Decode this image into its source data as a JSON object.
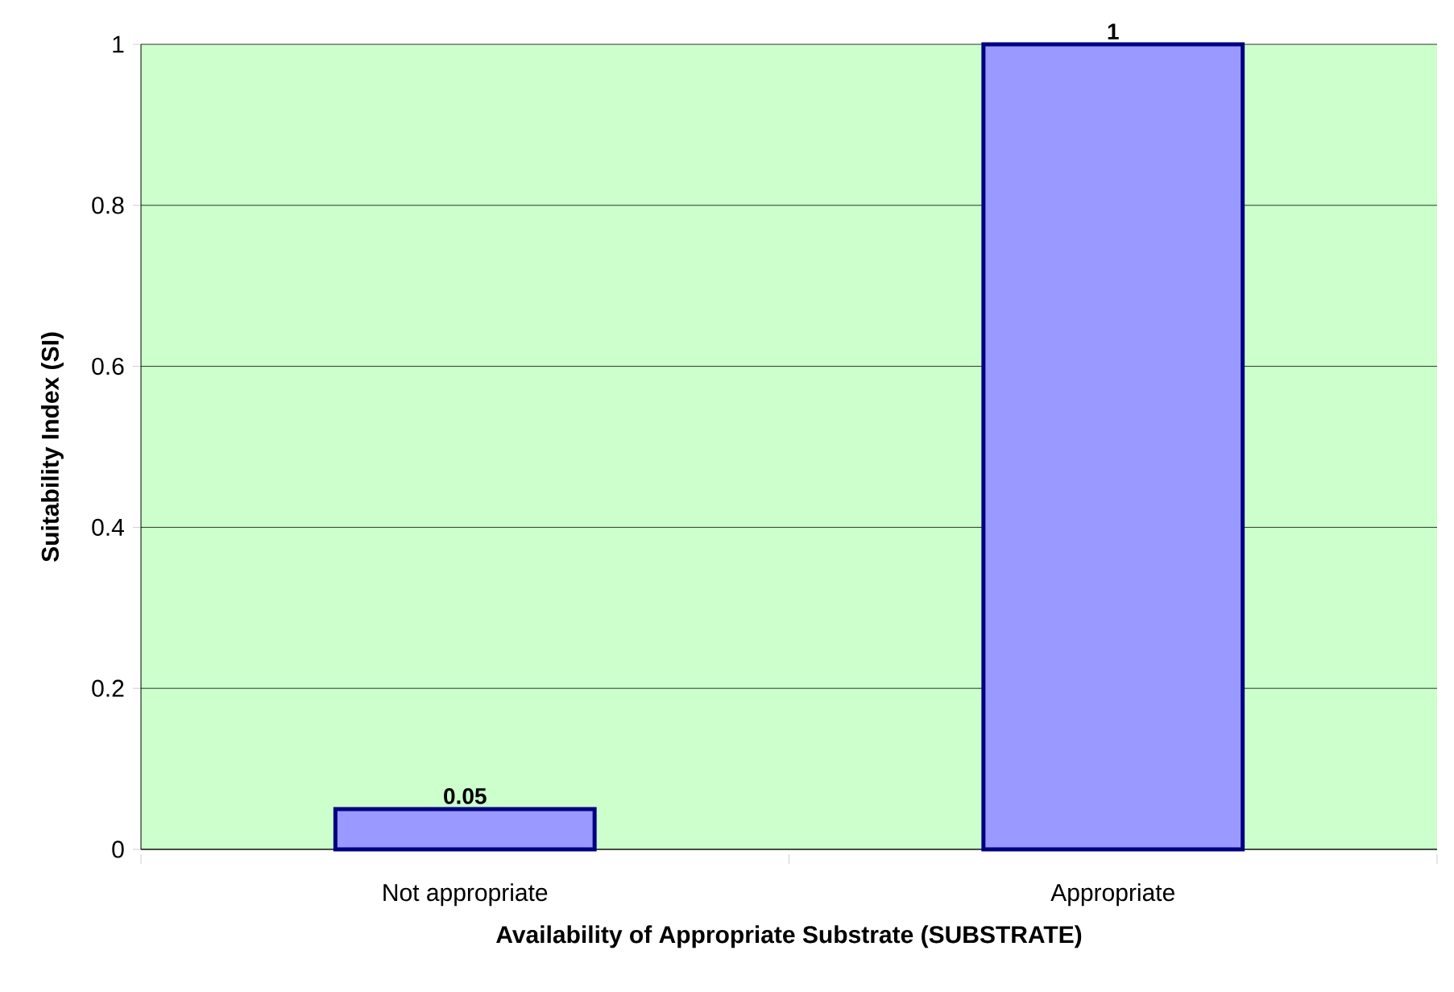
{
  "chart_data": {
    "type": "bar",
    "xlabel": "Availability of Appropriate Substrate (SUBSTRATE)",
    "ylabel": "Suitability Index (SI)",
    "categories": [
      "Not appropriate",
      "Appropriate"
    ],
    "values": [
      0.05,
      1
    ],
    "value_labels": [
      "0.05",
      "1"
    ],
    "color": "#9999ff",
    "ylim": [
      0,
      1
    ],
    "yticks": [
      0,
      0.2,
      0.4,
      0.6,
      0.8,
      1
    ],
    "grid": "y"
  }
}
